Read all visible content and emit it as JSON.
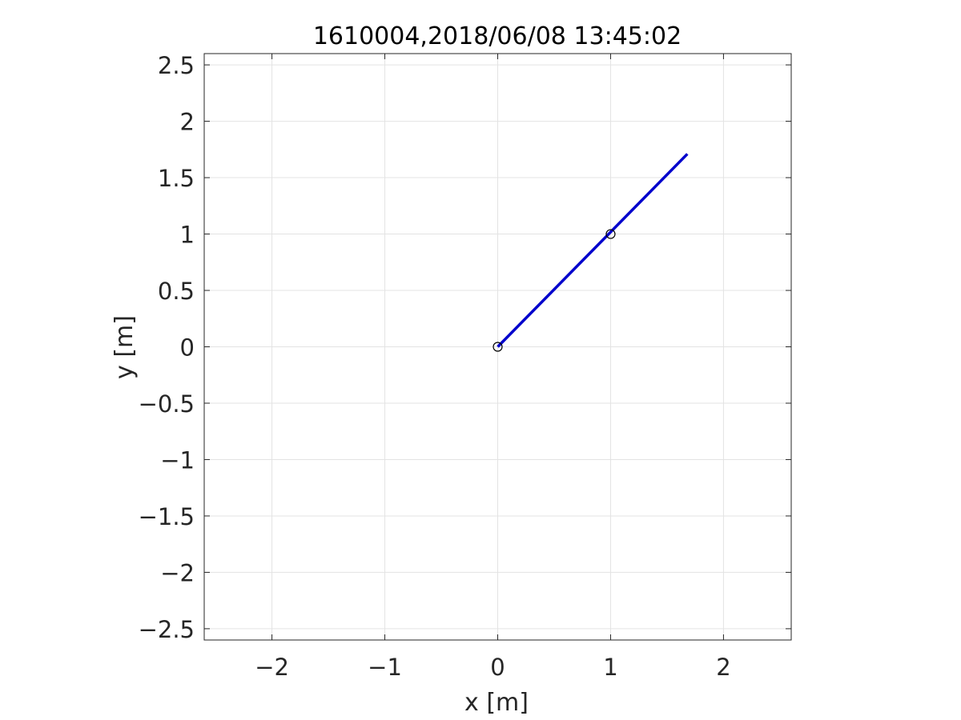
{
  "chart_data": {
    "type": "line",
    "title": "1610004,2018/06/08 13:45:02",
    "xlabel": "x [m]",
    "ylabel": "y [m]",
    "xlim": [
      -2.6,
      2.6
    ],
    "ylim": [
      -2.6,
      2.6
    ],
    "grid": true,
    "x_ticks": [
      -2,
      -1,
      0,
      1,
      2
    ],
    "x_tick_labels": [
      "−2",
      "−1",
      "0",
      "1",
      "2"
    ],
    "y_ticks": [
      2.5,
      2,
      1.5,
      1,
      0.5,
      0,
      -0.5,
      -1,
      -1.5,
      -2,
      -2.5
    ],
    "y_tick_labels": [
      "2.5",
      "2",
      "1.5",
      "1",
      "0.5",
      "0",
      "−0.5",
      "−1",
      "−1.5",
      "−2",
      "−2.5"
    ],
    "series": [
      {
        "color": "#0000cc",
        "x": [
          0,
          1.68
        ],
        "y": [
          0,
          1.71
        ]
      }
    ],
    "markers": [
      {
        "x": 0,
        "y": 0,
        "shape": "circle",
        "color": "#000000"
      },
      {
        "x": 1.0,
        "y": 1.0,
        "shape": "circle",
        "color": "#000000"
      }
    ]
  }
}
